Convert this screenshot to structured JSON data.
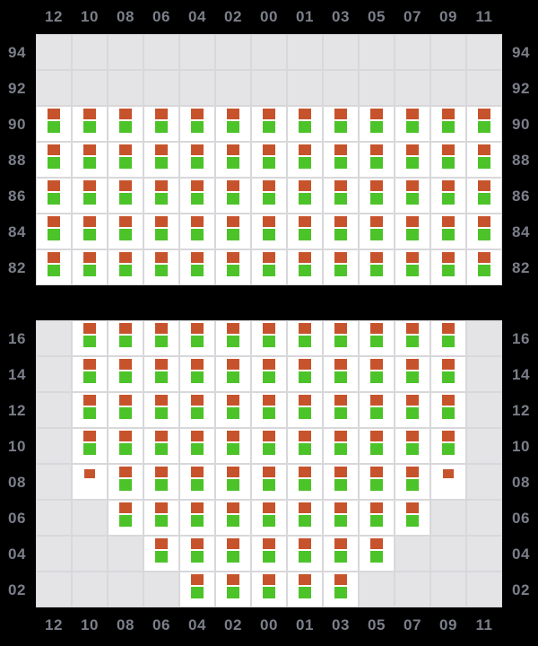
{
  "board": {
    "columns": [
      "12",
      "10",
      "08",
      "06",
      "04",
      "02",
      "00",
      "01",
      "03",
      "05",
      "07",
      "09",
      "11"
    ],
    "cell_codes": {
      "0": "inactive-empty",
      "B": "orange-and-green-markers",
      "o": "orange-marker-only"
    },
    "sections": [
      {
        "name": "upper",
        "rows": [
          {
            "label": "94",
            "cells": "0000000000000"
          },
          {
            "label": "92",
            "cells": "0000000000000"
          },
          {
            "label": "90",
            "cells": "BBBBBBBBBBBBB"
          },
          {
            "label": "88",
            "cells": "BBBBBBBBBBBBB"
          },
          {
            "label": "86",
            "cells": "BBBBBBBBBBBBB"
          },
          {
            "label": "84",
            "cells": "BBBBBBBBBBBBB"
          },
          {
            "label": "82",
            "cells": "BBBBBBBBBBBBB"
          }
        ]
      },
      {
        "name": "lower",
        "rows": [
          {
            "label": "16",
            "cells": "0BBBBBBBBBBB0"
          },
          {
            "label": "14",
            "cells": "0BBBBBBBBBBB0"
          },
          {
            "label": "12",
            "cells": "0BBBBBBBBBBB0"
          },
          {
            "label": "10",
            "cells": "0BBBBBBBBBBB0"
          },
          {
            "label": "08",
            "cells": "0oBBBBBBBBBo0"
          },
          {
            "label": "06",
            "cells": "00BBBBBBBBB00"
          },
          {
            "label": "04",
            "cells": "000BBBBBBB000"
          },
          {
            "label": "02",
            "cells": "0000BBBBB0000"
          }
        ]
      }
    ]
  },
  "colors": {
    "background": "#000000",
    "cell_active": "#ffffff",
    "cell_inactive": "#e4e4e6",
    "gridline": "#d8d8db",
    "marker_orange": "#c7532c",
    "marker_green": "#4dc32a",
    "label_text": "#7b7f8a"
  }
}
